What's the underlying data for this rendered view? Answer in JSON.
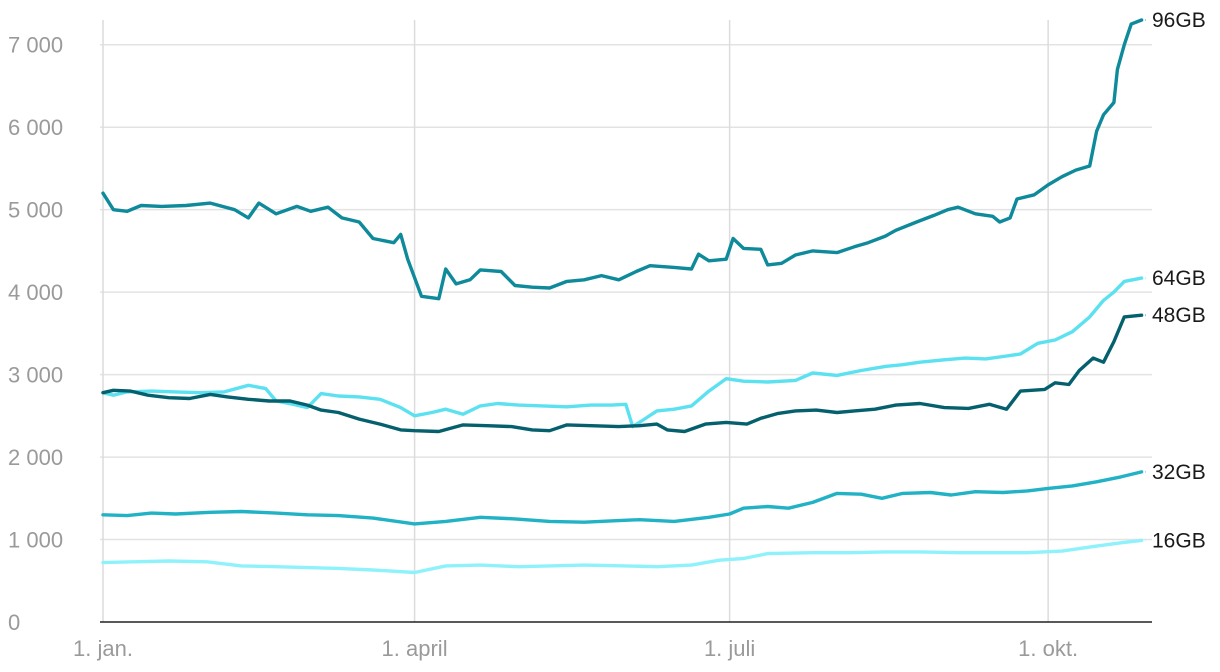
{
  "chart_data": {
    "type": "line",
    "title": "",
    "xlabel": "",
    "ylabel": "",
    "x_domain": [
      "2022-01-01",
      "2022-10-31"
    ],
    "ylim": [
      0,
      7300
    ],
    "y_ticks": [
      {
        "value": 0,
        "label": "0"
      },
      {
        "value": 1000,
        "label": "1 000"
      },
      {
        "value": 2000,
        "label": "2 000"
      },
      {
        "value": 3000,
        "label": "3 000"
      },
      {
        "value": 4000,
        "label": "4 000"
      },
      {
        "value": 5000,
        "label": "5 000"
      },
      {
        "value": 6000,
        "label": "6 000"
      },
      {
        "value": 7000,
        "label": "7 000"
      }
    ],
    "x_ticks": [
      {
        "date": "2022-01-01",
        "label": "1. jan."
      },
      {
        "date": "2022-04-01",
        "label": "1. april"
      },
      {
        "date": "2022-07-01",
        "label": "1. juli"
      },
      {
        "date": "2022-10-01",
        "label": "1. okt."
      }
    ],
    "grid": true,
    "legend": "end-of-line labels (right)",
    "series": [
      {
        "name": "96GB",
        "color": "#0e8a9b",
        "points": [
          [
            "2022-01-01",
            5200
          ],
          [
            "2022-01-04",
            5000
          ],
          [
            "2022-01-08",
            4980
          ],
          [
            "2022-01-12",
            5050
          ],
          [
            "2022-01-18",
            5040
          ],
          [
            "2022-01-25",
            5050
          ],
          [
            "2022-02-01",
            5080
          ],
          [
            "2022-02-08",
            5000
          ],
          [
            "2022-02-12",
            4900
          ],
          [
            "2022-02-15",
            5080
          ],
          [
            "2022-02-20",
            4950
          ],
          [
            "2022-02-26",
            5040
          ],
          [
            "2022-03-02",
            4980
          ],
          [
            "2022-03-07",
            5030
          ],
          [
            "2022-03-11",
            4900
          ],
          [
            "2022-03-16",
            4850
          ],
          [
            "2022-03-20",
            4650
          ],
          [
            "2022-03-26",
            4600
          ],
          [
            "2022-03-28",
            4700
          ],
          [
            "2022-03-30",
            4400
          ],
          [
            "2022-04-03",
            3950
          ],
          [
            "2022-04-08",
            3920
          ],
          [
            "2022-04-10",
            4280
          ],
          [
            "2022-04-13",
            4100
          ],
          [
            "2022-04-17",
            4150
          ],
          [
            "2022-04-20",
            4270
          ],
          [
            "2022-04-26",
            4250
          ],
          [
            "2022-04-30",
            4080
          ],
          [
            "2022-05-05",
            4060
          ],
          [
            "2022-05-10",
            4050
          ],
          [
            "2022-05-15",
            4130
          ],
          [
            "2022-05-20",
            4150
          ],
          [
            "2022-05-25",
            4200
          ],
          [
            "2022-05-30",
            4150
          ],
          [
            "2022-06-04",
            4250
          ],
          [
            "2022-06-08",
            4320
          ],
          [
            "2022-06-15",
            4300
          ],
          [
            "2022-06-20",
            4280
          ],
          [
            "2022-06-22",
            4460
          ],
          [
            "2022-06-25",
            4380
          ],
          [
            "2022-06-30",
            4400
          ],
          [
            "2022-07-02",
            4650
          ],
          [
            "2022-07-05",
            4530
          ],
          [
            "2022-07-10",
            4520
          ],
          [
            "2022-07-12",
            4330
          ],
          [
            "2022-07-16",
            4350
          ],
          [
            "2022-07-20",
            4450
          ],
          [
            "2022-07-25",
            4500
          ],
          [
            "2022-08-01",
            4480
          ],
          [
            "2022-08-06",
            4550
          ],
          [
            "2022-08-10",
            4600
          ],
          [
            "2022-08-15",
            4680
          ],
          [
            "2022-08-18",
            4750
          ],
          [
            "2022-08-24",
            4850
          ],
          [
            "2022-08-29",
            4930
          ],
          [
            "2022-09-02",
            5000
          ],
          [
            "2022-09-05",
            5030
          ],
          [
            "2022-09-10",
            4950
          ],
          [
            "2022-09-15",
            4920
          ],
          [
            "2022-09-17",
            4850
          ],
          [
            "2022-09-20",
            4900
          ],
          [
            "2022-09-22",
            5130
          ],
          [
            "2022-09-27",
            5180
          ],
          [
            "2022-10-01",
            5300
          ],
          [
            "2022-10-05",
            5400
          ],
          [
            "2022-10-09",
            5480
          ],
          [
            "2022-10-13",
            5530
          ],
          [
            "2022-10-15",
            5950
          ],
          [
            "2022-10-17",
            6150
          ],
          [
            "2022-10-20",
            6300
          ],
          [
            "2022-10-21",
            6700
          ],
          [
            "2022-10-23",
            7000
          ],
          [
            "2022-10-25",
            7250
          ],
          [
            "2022-10-28",
            7300
          ]
        ]
      },
      {
        "name": "64GB",
        "color": "#5ce1f0",
        "points": [
          [
            "2022-01-01",
            2780
          ],
          [
            "2022-01-04",
            2750
          ],
          [
            "2022-01-08",
            2790
          ],
          [
            "2022-01-15",
            2800
          ],
          [
            "2022-01-22",
            2790
          ],
          [
            "2022-01-29",
            2780
          ],
          [
            "2022-02-05",
            2790
          ],
          [
            "2022-02-12",
            2870
          ],
          [
            "2022-02-17",
            2830
          ],
          [
            "2022-02-20",
            2680
          ],
          [
            "2022-02-25",
            2640
          ],
          [
            "2022-03-01",
            2600
          ],
          [
            "2022-03-05",
            2770
          ],
          [
            "2022-03-10",
            2740
          ],
          [
            "2022-03-16",
            2730
          ],
          [
            "2022-03-22",
            2700
          ],
          [
            "2022-03-28",
            2600
          ],
          [
            "2022-04-01",
            2500
          ],
          [
            "2022-04-06",
            2540
          ],
          [
            "2022-04-10",
            2580
          ],
          [
            "2022-04-15",
            2520
          ],
          [
            "2022-04-20",
            2620
          ],
          [
            "2022-04-25",
            2650
          ],
          [
            "2022-05-01",
            2630
          ],
          [
            "2022-05-08",
            2620
          ],
          [
            "2022-05-15",
            2610
          ],
          [
            "2022-05-22",
            2630
          ],
          [
            "2022-05-28",
            2630
          ],
          [
            "2022-06-01",
            2640
          ],
          [
            "2022-06-03",
            2370
          ],
          [
            "2022-06-06",
            2450
          ],
          [
            "2022-06-10",
            2560
          ],
          [
            "2022-06-15",
            2580
          ],
          [
            "2022-06-20",
            2620
          ],
          [
            "2022-06-25",
            2800
          ],
          [
            "2022-06-30",
            2950
          ],
          [
            "2022-07-05",
            2920
          ],
          [
            "2022-07-12",
            2910
          ],
          [
            "2022-07-20",
            2930
          ],
          [
            "2022-07-25",
            3020
          ],
          [
            "2022-08-01",
            2990
          ],
          [
            "2022-08-08",
            3050
          ],
          [
            "2022-08-15",
            3100
          ],
          [
            "2022-08-20",
            3120
          ],
          [
            "2022-08-25",
            3150
          ],
          [
            "2022-09-01",
            3180
          ],
          [
            "2022-09-07",
            3200
          ],
          [
            "2022-09-13",
            3190
          ],
          [
            "2022-09-18",
            3220
          ],
          [
            "2022-09-23",
            3250
          ],
          [
            "2022-09-28",
            3380
          ],
          [
            "2022-10-03",
            3420
          ],
          [
            "2022-10-08",
            3520
          ],
          [
            "2022-10-13",
            3700
          ],
          [
            "2022-10-17",
            3900
          ],
          [
            "2022-10-20",
            4000
          ],
          [
            "2022-10-23",
            4130
          ],
          [
            "2022-10-28",
            4170
          ]
        ]
      },
      {
        "name": "48GB",
        "color": "#05606e",
        "points": [
          [
            "2022-01-01",
            2780
          ],
          [
            "2022-01-04",
            2810
          ],
          [
            "2022-01-09",
            2800
          ],
          [
            "2022-01-14",
            2750
          ],
          [
            "2022-01-20",
            2720
          ],
          [
            "2022-01-26",
            2710
          ],
          [
            "2022-02-01",
            2760
          ],
          [
            "2022-02-06",
            2730
          ],
          [
            "2022-02-12",
            2700
          ],
          [
            "2022-02-18",
            2680
          ],
          [
            "2022-02-24",
            2680
          ],
          [
            "2022-03-01",
            2630
          ],
          [
            "2022-03-05",
            2570
          ],
          [
            "2022-03-10",
            2540
          ],
          [
            "2022-03-16",
            2460
          ],
          [
            "2022-03-22",
            2400
          ],
          [
            "2022-03-28",
            2330
          ],
          [
            "2022-04-01",
            2320
          ],
          [
            "2022-04-08",
            2310
          ],
          [
            "2022-04-15",
            2390
          ],
          [
            "2022-04-22",
            2380
          ],
          [
            "2022-04-29",
            2370
          ],
          [
            "2022-05-05",
            2330
          ],
          [
            "2022-05-10",
            2320
          ],
          [
            "2022-05-15",
            2390
          ],
          [
            "2022-05-22",
            2380
          ],
          [
            "2022-05-30",
            2370
          ],
          [
            "2022-06-05",
            2380
          ],
          [
            "2022-06-10",
            2400
          ],
          [
            "2022-06-13",
            2330
          ],
          [
            "2022-06-18",
            2310
          ],
          [
            "2022-06-24",
            2400
          ],
          [
            "2022-06-30",
            2420
          ],
          [
            "2022-07-06",
            2400
          ],
          [
            "2022-07-10",
            2470
          ],
          [
            "2022-07-15",
            2530
          ],
          [
            "2022-07-20",
            2560
          ],
          [
            "2022-07-26",
            2570
          ],
          [
            "2022-08-01",
            2540
          ],
          [
            "2022-08-06",
            2560
          ],
          [
            "2022-08-12",
            2580
          ],
          [
            "2022-08-18",
            2630
          ],
          [
            "2022-08-25",
            2650
          ],
          [
            "2022-09-01",
            2600
          ],
          [
            "2022-09-08",
            2590
          ],
          [
            "2022-09-14",
            2640
          ],
          [
            "2022-09-19",
            2580
          ],
          [
            "2022-09-23",
            2800
          ],
          [
            "2022-09-30",
            2820
          ],
          [
            "2022-10-03",
            2900
          ],
          [
            "2022-10-07",
            2880
          ],
          [
            "2022-10-10",
            3050
          ],
          [
            "2022-10-14",
            3200
          ],
          [
            "2022-10-17",
            3150
          ],
          [
            "2022-10-20",
            3400
          ],
          [
            "2022-10-23",
            3700
          ],
          [
            "2022-10-28",
            3720
          ]
        ]
      },
      {
        "name": "32GB",
        "color": "#22b2c5",
        "points": [
          [
            "2022-01-01",
            1300
          ],
          [
            "2022-01-08",
            1290
          ],
          [
            "2022-01-15",
            1320
          ],
          [
            "2022-01-22",
            1310
          ],
          [
            "2022-02-01",
            1330
          ],
          [
            "2022-02-10",
            1340
          ],
          [
            "2022-02-20",
            1320
          ],
          [
            "2022-03-01",
            1300
          ],
          [
            "2022-03-10",
            1290
          ],
          [
            "2022-03-20",
            1260
          ],
          [
            "2022-04-01",
            1190
          ],
          [
            "2022-04-10",
            1220
          ],
          [
            "2022-04-20",
            1270
          ],
          [
            "2022-04-30",
            1250
          ],
          [
            "2022-05-10",
            1220
          ],
          [
            "2022-05-20",
            1210
          ],
          [
            "2022-05-30",
            1230
          ],
          [
            "2022-06-05",
            1240
          ],
          [
            "2022-06-15",
            1220
          ],
          [
            "2022-06-25",
            1270
          ],
          [
            "2022-07-01",
            1310
          ],
          [
            "2022-07-05",
            1380
          ],
          [
            "2022-07-12",
            1400
          ],
          [
            "2022-07-18",
            1380
          ],
          [
            "2022-07-25",
            1450
          ],
          [
            "2022-08-01",
            1560
          ],
          [
            "2022-08-08",
            1550
          ],
          [
            "2022-08-14",
            1500
          ],
          [
            "2022-08-20",
            1560
          ],
          [
            "2022-08-28",
            1570
          ],
          [
            "2022-09-03",
            1540
          ],
          [
            "2022-09-10",
            1580
          ],
          [
            "2022-09-18",
            1570
          ],
          [
            "2022-09-25",
            1590
          ],
          [
            "2022-10-01",
            1620
          ],
          [
            "2022-10-08",
            1650
          ],
          [
            "2022-10-15",
            1700
          ],
          [
            "2022-10-22",
            1760
          ],
          [
            "2022-10-28",
            1820
          ]
        ]
      },
      {
        "name": "16GB",
        "color": "#8ff2fb",
        "points": [
          [
            "2022-01-01",
            720
          ],
          [
            "2022-01-10",
            730
          ],
          [
            "2022-01-20",
            740
          ],
          [
            "2022-01-31",
            730
          ],
          [
            "2022-02-10",
            680
          ],
          [
            "2022-02-20",
            670
          ],
          [
            "2022-03-01",
            660
          ],
          [
            "2022-03-10",
            650
          ],
          [
            "2022-03-20",
            630
          ],
          [
            "2022-04-01",
            600
          ],
          [
            "2022-04-10",
            680
          ],
          [
            "2022-04-20",
            690
          ],
          [
            "2022-05-01",
            670
          ],
          [
            "2022-05-10",
            680
          ],
          [
            "2022-05-20",
            690
          ],
          [
            "2022-06-01",
            680
          ],
          [
            "2022-06-10",
            670
          ],
          [
            "2022-06-20",
            690
          ],
          [
            "2022-06-28",
            750
          ],
          [
            "2022-07-05",
            770
          ],
          [
            "2022-07-12",
            830
          ],
          [
            "2022-07-25",
            840
          ],
          [
            "2022-08-05",
            840
          ],
          [
            "2022-08-15",
            850
          ],
          [
            "2022-08-25",
            850
          ],
          [
            "2022-09-05",
            840
          ],
          [
            "2022-09-15",
            840
          ],
          [
            "2022-09-25",
            840
          ],
          [
            "2022-10-05",
            860
          ],
          [
            "2022-10-15",
            920
          ],
          [
            "2022-10-22",
            960
          ],
          [
            "2022-10-28",
            990
          ]
        ]
      }
    ]
  }
}
